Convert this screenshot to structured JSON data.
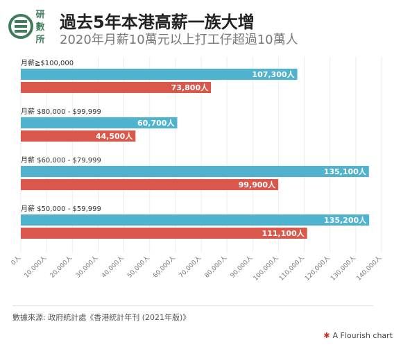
{
  "header": {
    "logo_text": [
      "研",
      "數",
      "所"
    ],
    "title": "過去5年本港高薪一族大增",
    "subtitle": "2020年月薪10萬元以上打工仔超過10萬人"
  },
  "colors": {
    "series_a": "#4fb3cf",
    "series_b": "#d9584b",
    "logo": "#3f7d5a"
  },
  "chart_data": {
    "type": "bar",
    "orientation": "horizontal",
    "categories": [
      "月薪≧$100,000",
      "月薪 $80,000 - $99,999",
      "月薪 $60,000 - $79,999",
      "月薪 $50,000 - $59,999"
    ],
    "series": [
      {
        "values": [
          107300,
          60700,
          135100,
          135200
        ],
        "labels": [
          "107,300人",
          "60,700人",
          "135,100人",
          "135,200人"
        ]
      },
      {
        "values": [
          73800,
          44500,
          99900,
          111100
        ],
        "labels": [
          "73,800人",
          "44,500人",
          "99,900人",
          "111,100人"
        ]
      }
    ],
    "xlim": [
      0,
      140000
    ],
    "xticks": [
      0,
      10000,
      20000,
      30000,
      40000,
      50000,
      60000,
      70000,
      80000,
      90000,
      100000,
      110000,
      120000,
      130000,
      140000
    ],
    "xtick_labels": [
      "0人",
      "10,000人",
      "20,000人",
      "30,000人",
      "40,000人",
      "50,000人",
      "60,000人",
      "70,000人",
      "80,000人",
      "90,000人",
      "100,000人",
      "110,000人",
      "120,000人",
      "130,000人",
      "140,000人"
    ],
    "grid": true
  },
  "footer": {
    "source": "數據來源: 政府統計處《香港統計年刊 (2021年版)》",
    "credit": "A Flourish chart"
  }
}
